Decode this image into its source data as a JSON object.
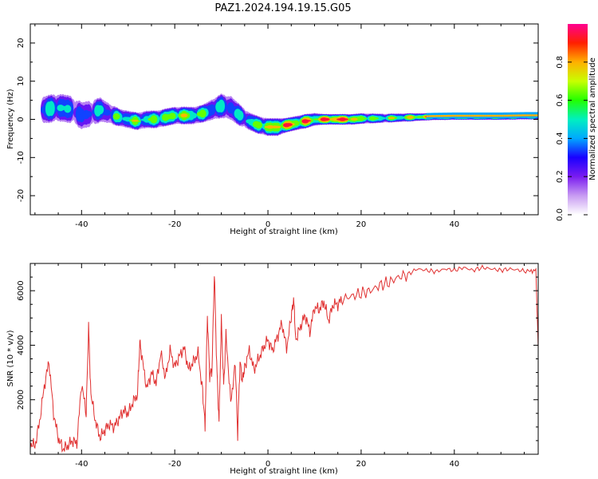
{
  "figure": {
    "title": "PAZ1.2024.194.19.15.G05"
  },
  "chart_data": [
    {
      "type": "heatmap",
      "title": "PAZ1.2024.194.19.15.G05",
      "xlabel": "Height of straight line (km)",
      "ylabel": "Frequency (Hz)",
      "xlim": [
        -51,
        58
      ],
      "ylim": [
        -25,
        25
      ],
      "xticks": [
        -40,
        -20,
        0,
        20,
        40
      ],
      "yticks": [
        -20,
        -10,
        0,
        10,
        20
      ],
      "colorbar": {
        "label": "Normalized spectral amplitude",
        "range": [
          0,
          1
        ],
        "ticks": [
          0.0,
          0.2,
          0.4,
          0.6,
          0.8
        ],
        "colormap": [
          "#ffffff",
          "#c89bf2",
          "#7a1cf0",
          "#1a00ff",
          "#00a8ff",
          "#00f0c0",
          "#22ff00",
          "#c8ff00",
          "#ffb000",
          "#ff2000",
          "#ff0090"
        ]
      },
      "ridge": {
        "x": [
          -48,
          -46,
          -44,
          -42,
          -40,
          -38,
          -36,
          -34,
          -32,
          -30,
          -28,
          -26,
          -24,
          -22,
          -20,
          -18,
          -16,
          -14,
          -12,
          -10,
          -8,
          -6,
          -4,
          -2,
          0,
          2,
          4,
          6,
          8,
          10,
          12,
          14,
          16,
          18,
          20,
          25,
          30,
          35,
          40,
          45,
          50,
          55,
          58
        ],
        "freq": [
          2.5,
          3.0,
          3.0,
          2.5,
          1.0,
          1.5,
          2.5,
          1.5,
          0.5,
          0.0,
          -0.5,
          0.0,
          0.0,
          0.5,
          1.0,
          1.0,
          1.0,
          1.5,
          2.5,
          3.5,
          3.0,
          1.0,
          -0.5,
          -1.5,
          -2.0,
          -2.0,
          -1.5,
          -1.0,
          -0.5,
          0.0,
          0.0,
          0.0,
          0.0,
          0.0,
          0.2,
          0.3,
          0.5,
          0.7,
          0.8,
          0.8,
          0.8,
          0.9,
          0.9
        ],
        "amplitude": [
          0.35,
          0.45,
          0.4,
          0.3,
          0.25,
          0.3,
          0.35,
          0.35,
          0.45,
          0.55,
          0.5,
          0.5,
          0.55,
          0.6,
          0.55,
          0.6,
          0.55,
          0.5,
          0.45,
          0.35,
          0.4,
          0.35,
          0.45,
          0.55,
          0.65,
          0.7,
          0.8,
          0.7,
          0.75,
          0.65,
          0.8,
          0.85,
          0.85,
          0.75,
          0.6,
          0.5,
          0.6,
          0.7,
          0.75,
          0.75,
          0.75,
          0.7,
          0.7
        ],
        "spread": [
          4,
          4,
          4,
          4,
          4,
          4,
          3.5,
          3,
          2.5,
          2.5,
          2.5,
          2.5,
          2.5,
          2.5,
          2.5,
          2.5,
          2.5,
          2.5,
          3,
          3.5,
          3.5,
          3,
          2.5,
          2.5,
          2.5,
          2.5,
          2,
          2,
          2,
          1.8,
          1.5,
          1.5,
          1.5,
          1.5,
          1.5,
          1.3,
          1.2,
          1.0,
          1.0,
          1.0,
          1.0,
          1.0,
          1.0
        ]
      }
    },
    {
      "type": "line",
      "xlabel": "Height of straight line (km)",
      "ylabel": "SNR (10 * v/v)",
      "xlim": [
        -51,
        58
      ],
      "ylim": [
        0,
        7000
      ],
      "xticks": [
        -40,
        -20,
        0,
        20,
        40
      ],
      "yticks": [
        2000,
        4000,
        6000
      ],
      "color": "#e03030",
      "x": [
        -51,
        -50,
        -49,
        -48,
        -47,
        -46,
        -45,
        -44,
        -43,
        -42,
        -41,
        -40,
        -39,
        -38.5,
        -38,
        -37,
        -36,
        -35,
        -34,
        -33,
        -32,
        -31,
        -30,
        -29,
        -28,
        -27.5,
        -27,
        -26,
        -25,
        -24,
        -23,
        -22,
        -21,
        -20,
        -19,
        -18,
        -17,
        -16,
        -15,
        -14,
        -13.5,
        -13,
        -12.5,
        -12,
        -11.5,
        -11,
        -10.5,
        -10,
        -9.5,
        -9,
        -8,
        -7,
        -6.5,
        -6,
        -5.5,
        -5,
        -4,
        -3,
        -2,
        -1,
        0,
        1,
        2,
        3,
        4,
        5,
        5.5,
        6,
        7,
        8,
        9,
        10,
        11,
        12,
        13,
        14,
        15,
        16,
        18,
        20,
        22,
        24,
        26,
        28,
        30,
        32,
        34,
        36,
        38,
        40,
        42,
        44,
        46,
        48,
        50,
        52,
        54,
        56,
        57.5,
        58
      ],
      "y": [
        400,
        300,
        1200,
        2500,
        3400,
        1500,
        600,
        200,
        300,
        500,
        400,
        2600,
        1500,
        4700,
        2200,
        1200,
        600,
        900,
        1100,
        1000,
        1300,
        1600,
        1500,
        1900,
        2200,
        4100,
        3500,
        2400,
        3000,
        2600,
        3700,
        2800,
        3800,
        3200,
        3600,
        3900,
        3100,
        3400,
        3700,
        2300,
        1000,
        5100,
        2900,
        3100,
        6700,
        3300,
        1200,
        4900,
        2500,
        4400,
        1900,
        3300,
        700,
        3400,
        2700,
        3200,
        3800,
        3100,
        3500,
        3900,
        4200,
        3800,
        4300,
        4800,
        3900,
        5000,
        5700,
        4200,
        4700,
        5100,
        4500,
        5400,
        5300,
        5600,
        4900,
        5500,
        5500,
        5700,
        5800,
        5900,
        6000,
        6200,
        6300,
        6500,
        6600,
        6800,
        6750,
        6700,
        6800,
        6750,
        6850,
        6750,
        6850,
        6800,
        6750,
        6800,
        6750,
        6700,
        6750,
        3900
      ]
    }
  ]
}
